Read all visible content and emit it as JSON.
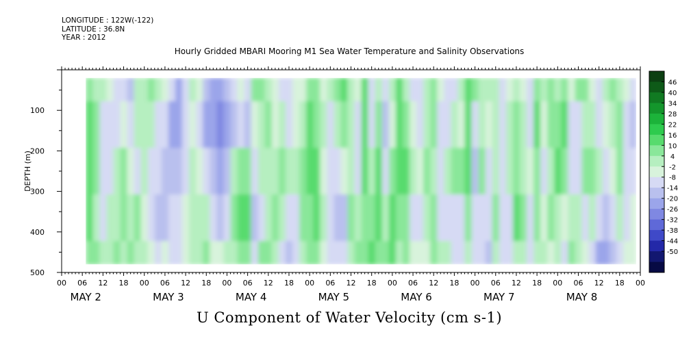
{
  "header": {
    "longitude": "LONGITUDE : 122W(-122)",
    "latitude": "LATITUDE : 36.8N",
    "year": "YEAR : 2012"
  },
  "chart_data": {
    "type": "heatmap",
    "title": "Hourly Gridded MBARI Mooring M1 Sea Water Temperature and Salinity Observations",
    "xlabel": "U Component of Water Velocity (cm s-1)",
    "ylabel": "DEPTH (m)",
    "ylim": [
      500,
      0
    ],
    "y_ticks": [
      100,
      200,
      300,
      400,
      500
    ],
    "x_range_hours": [
      0,
      168
    ],
    "x_tick_labels": [
      "00",
      "06",
      "12",
      "18",
      "00",
      "06",
      "12",
      "18",
      "00",
      "06",
      "12",
      "18",
      "00",
      "06",
      "12",
      "18",
      "00",
      "06",
      "12",
      "18",
      "00",
      "06",
      "12",
      "18",
      "00",
      "06",
      "12",
      "18",
      "00"
    ],
    "day_labels": [
      "MAY 2",
      "MAY 3",
      "MAY 4",
      "MAY 5",
      "MAY 6",
      "MAY 7",
      "MAY 8"
    ],
    "colorbar": {
      "labels": [
        46,
        40,
        34,
        28,
        22,
        16,
        10,
        4,
        -2,
        -8,
        -14,
        -20,
        -26,
        -32,
        -38,
        -44,
        -50
      ],
      "colors": [
        "#0c3f12",
        "#0e5a18",
        "#117a22",
        "#14962c",
        "#1cb33a",
        "#2ecb4e",
        "#58db6e",
        "#8ae79a",
        "#b6efc0",
        "#d8f3dc",
        "#d6daf4",
        "#b9c0ee",
        "#9ba5ea",
        "#7f88e2",
        "#5f69d8",
        "#3f49c8",
        "#2328a8",
        "#121770",
        "#070a44"
      ]
    },
    "profile_top_depth_m": 20,
    "profile_bottom_depth_m": 480,
    "data_start_hour": 7,
    "data_end_hour": 168,
    "u_profiles": [
      {
        "hour": 8,
        "values": [
          8,
          12,
          14,
          12,
          10
        ]
      },
      {
        "hour": 10,
        "values": [
          6,
          10,
          8,
          4,
          10
        ]
      },
      {
        "hour": 12,
        "values": [
          4,
          -6,
          -8,
          -10,
          2
        ]
      },
      {
        "hour": 14,
        "values": [
          -4,
          -10,
          -6,
          2,
          4
        ]
      },
      {
        "hour": 16,
        "values": [
          -10,
          -8,
          4,
          6,
          8
        ]
      },
      {
        "hour": 18,
        "values": [
          -6,
          -4,
          10,
          8,
          6
        ]
      },
      {
        "hour": 20,
        "values": [
          -12,
          -8,
          -2,
          6,
          10
        ]
      },
      {
        "hour": 22,
        "values": [
          4,
          2,
          -6,
          8,
          2
        ]
      },
      {
        "hour": 24,
        "values": [
          6,
          6,
          2,
          -4,
          6
        ]
      },
      {
        "hour": 26,
        "values": [
          10,
          4,
          -8,
          -10,
          -4
        ]
      },
      {
        "hour": 28,
        "values": [
          4,
          -6,
          -10,
          -14,
          -8
        ]
      },
      {
        "hour": 30,
        "values": [
          -4,
          -10,
          -14,
          -12,
          -2
        ]
      },
      {
        "hour": 32,
        "values": [
          -10,
          -16,
          -12,
          -6,
          -6
        ]
      },
      {
        "hour": 34,
        "values": [
          -16,
          -20,
          -14,
          -10,
          -8
        ]
      },
      {
        "hour": 36,
        "values": [
          -6,
          -8,
          -6,
          -4,
          0
        ]
      },
      {
        "hour": 38,
        "values": [
          2,
          -4,
          2,
          6,
          4
        ]
      },
      {
        "hour": 40,
        "values": [
          -4,
          -10,
          -2,
          2,
          6
        ]
      },
      {
        "hour": 42,
        "values": [
          -12,
          -16,
          -8,
          4,
          8
        ]
      },
      {
        "hour": 44,
        "values": [
          -18,
          -20,
          -14,
          -10,
          -2
        ]
      },
      {
        "hour": 46,
        "values": [
          -20,
          -24,
          -18,
          -12,
          -4
        ]
      },
      {
        "hour": 48,
        "values": [
          -14,
          -16,
          -12,
          -6,
          2
        ]
      },
      {
        "hour": 50,
        "values": [
          -8,
          -12,
          6,
          10,
          6
        ]
      },
      {
        "hour": 52,
        "values": [
          -4,
          -6,
          10,
          14,
          10
        ]
      },
      {
        "hour": 54,
        "values": [
          -6,
          -14,
          8,
          12,
          8
        ]
      },
      {
        "hour": 56,
        "values": [
          8,
          -4,
          -8,
          -14,
          -10
        ]
      },
      {
        "hour": 58,
        "values": [
          10,
          4,
          2,
          -10,
          8
        ]
      },
      {
        "hour": 60,
        "values": [
          6,
          8,
          6,
          4,
          10
        ]
      },
      {
        "hour": 62,
        "values": [
          -4,
          -2,
          6,
          10,
          6
        ]
      },
      {
        "hour": 64,
        "values": [
          -8,
          2,
          8,
          4,
          -6
        ]
      },
      {
        "hour": 66,
        "values": [
          -10,
          -6,
          2,
          -8,
          -12
        ]
      },
      {
        "hour": 68,
        "values": [
          -4,
          -2,
          4,
          -6,
          -10
        ]
      },
      {
        "hour": 70,
        "values": [
          -2,
          6,
          10,
          8,
          2
        ]
      },
      {
        "hour": 72,
        "values": [
          10,
          14,
          12,
          10,
          8
        ]
      },
      {
        "hour": 74,
        "values": [
          8,
          10,
          14,
          12,
          10
        ]
      },
      {
        "hour": 76,
        "values": [
          -2,
          6,
          -4,
          6,
          -2
        ]
      },
      {
        "hour": 78,
        "values": [
          4,
          -6,
          -10,
          -8,
          -6
        ]
      },
      {
        "hour": 80,
        "values": [
          10,
          6,
          -8,
          -14,
          -6
        ]
      },
      {
        "hour": 82,
        "values": [
          12,
          8,
          -2,
          -12,
          -10
        ]
      },
      {
        "hour": 84,
        "values": [
          6,
          4,
          6,
          8,
          6
        ]
      },
      {
        "hour": 86,
        "values": [
          -4,
          -10,
          -6,
          4,
          10
        ]
      },
      {
        "hour": 88,
        "values": [
          12,
          14,
          12,
          10,
          8
        ]
      },
      {
        "hour": 90,
        "values": [
          -8,
          -10,
          2,
          10,
          12
        ]
      },
      {
        "hour": 92,
        "values": [
          4,
          8,
          14,
          16,
          10
        ]
      },
      {
        "hour": 94,
        "values": [
          -10,
          -14,
          -8,
          6,
          10
        ]
      },
      {
        "hour": 96,
        "values": [
          6,
          -2,
          8,
          14,
          12
        ]
      },
      {
        "hour": 98,
        "values": [
          14,
          16,
          12,
          10,
          6
        ]
      },
      {
        "hour": 100,
        "values": [
          6,
          10,
          12,
          10,
          8
        ]
      },
      {
        "hour": 102,
        "values": [
          -6,
          -2,
          4,
          -6,
          -4
        ]
      },
      {
        "hour": 104,
        "values": [
          -10,
          -6,
          -4,
          -8,
          -2
        ]
      },
      {
        "hour": 106,
        "values": [
          2,
          6,
          10,
          4,
          -4
        ]
      },
      {
        "hour": 108,
        "values": [
          10,
          8,
          6,
          10,
          8
        ]
      },
      {
        "hour": 110,
        "values": [
          -4,
          -8,
          -10,
          -6,
          4
        ]
      },
      {
        "hour": 112,
        "values": [
          -10,
          -6,
          2,
          -8,
          6
        ]
      },
      {
        "hour": 114,
        "values": [
          -6,
          6,
          10,
          -6,
          -6
        ]
      },
      {
        "hour": 116,
        "values": [
          2,
          -2,
          8,
          -8,
          -10
        ]
      },
      {
        "hour": 118,
        "values": [
          14,
          16,
          12,
          8,
          4
        ]
      },
      {
        "hour": 120,
        "values": [
          8,
          -8,
          -12,
          -10,
          -6
        ]
      },
      {
        "hour": 122,
        "values": [
          6,
          4,
          8,
          -8,
          -10
        ]
      },
      {
        "hour": 124,
        "values": [
          2,
          -4,
          -6,
          -10,
          -14
        ]
      },
      {
        "hour": 126,
        "values": [
          6,
          4,
          2,
          8,
          4
        ]
      },
      {
        "hour": 128,
        "values": [
          -8,
          -10,
          -8,
          -10,
          -6
        ]
      },
      {
        "hour": 130,
        "values": [
          -2,
          6,
          4,
          -8,
          -10
        ]
      },
      {
        "hour": 132,
        "values": [
          6,
          8,
          10,
          12,
          6
        ]
      },
      {
        "hour": 134,
        "values": [
          -2,
          4,
          6,
          10,
          4
        ]
      },
      {
        "hour": 136,
        "values": [
          -6,
          -8,
          -2,
          -8,
          -6
        ]
      },
      {
        "hour": 138,
        "values": [
          10,
          12,
          10,
          8,
          4
        ]
      },
      {
        "hour": 140,
        "values": [
          6,
          -4,
          -8,
          -4,
          2
        ]
      },
      {
        "hour": 142,
        "values": [
          8,
          10,
          6,
          8,
          -2
        ]
      },
      {
        "hour": 144,
        "values": [
          4,
          8,
          12,
          6,
          4
        ]
      },
      {
        "hour": 146,
        "values": [
          10,
          14,
          8,
          -4,
          -6
        ]
      },
      {
        "hour": 148,
        "values": [
          -4,
          -10,
          -6,
          6,
          8
        ]
      },
      {
        "hour": 150,
        "values": [
          8,
          -6,
          -8,
          4,
          6
        ]
      },
      {
        "hour": 152,
        "values": [
          10,
          6,
          8,
          -6,
          -4
        ]
      },
      {
        "hour": 154,
        "values": [
          -4,
          2,
          10,
          6,
          -10
        ]
      },
      {
        "hour": 156,
        "values": [
          -8,
          -6,
          4,
          -10,
          -16
        ]
      },
      {
        "hour": 158,
        "values": [
          2,
          -4,
          -8,
          -14,
          -18
        ]
      },
      {
        "hour": 160,
        "values": [
          10,
          6,
          -2,
          -10,
          -12
        ]
      },
      {
        "hour": 162,
        "values": [
          6,
          10,
          8,
          2,
          -6
        ]
      },
      {
        "hour": 164,
        "values": [
          -4,
          -6,
          -8,
          -10,
          -4
        ]
      },
      {
        "hour": 166,
        "values": [
          -8,
          -12,
          -6,
          -4,
          -2
        ]
      },
      {
        "hour": 168,
        "values": [
          -4,
          -2,
          -2,
          -4,
          -6
        ]
      }
    ]
  }
}
